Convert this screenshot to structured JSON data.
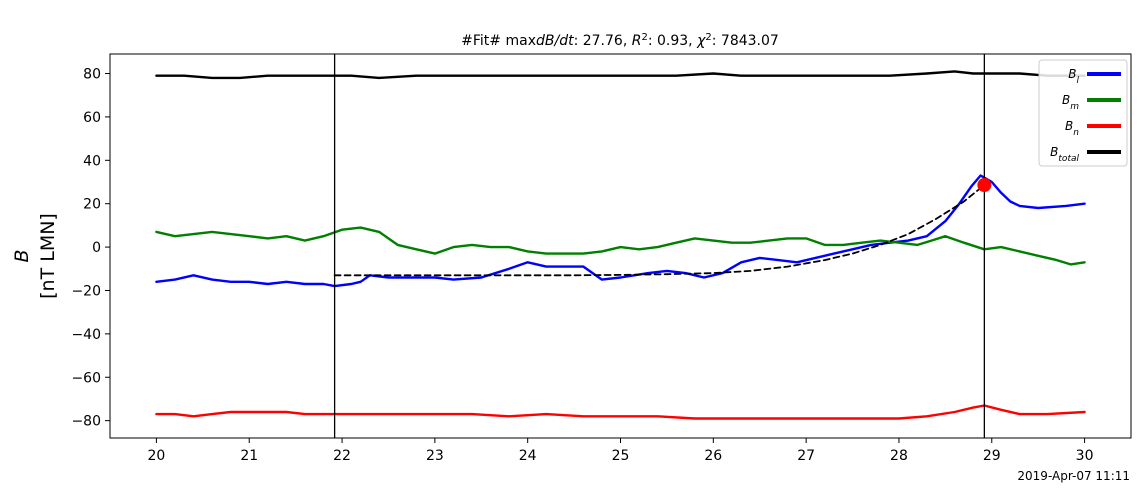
{
  "chart_data": {
    "type": "line",
    "title": "#Fit# max dB/dt: 27.76, R²: 0.93, χ²: 7843.07",
    "title_parts": {
      "prefix": "#Fit# max",
      "var": "dB/dt",
      "r2_label": "R",
      "r2_value": ": 0.93, ",
      "chi_label": "χ",
      "chi_value": ": 7843.07",
      "max_value": ": 27.76, "
    },
    "ylabel": "B",
    "ylabel_units": "[nT LMN]",
    "xlim": [
      19.5,
      30.5
    ],
    "ylim": [
      -88,
      89
    ],
    "xticks": [
      20,
      21,
      22,
      23,
      24,
      25,
      26,
      27,
      28,
      29,
      30
    ],
    "yticks": [
      -80,
      -60,
      -40,
      -20,
      0,
      20,
      40,
      60,
      80
    ],
    "timestamp": "2019-Apr-07 11:11",
    "vertical_lines": [
      21.92,
      28.92
    ],
    "fit_point": {
      "x": 28.92,
      "y": 28.6,
      "color": "#ff0000"
    },
    "legend_position": "top-right",
    "series": [
      {
        "name": "B_l",
        "name_base": "B",
        "name_sub": "l",
        "color": "#0000ff",
        "style": "solid",
        "x": [
          20,
          20.2,
          20.4,
          20.6,
          20.8,
          21.0,
          21.2,
          21.4,
          21.6,
          21.8,
          21.92,
          22.1,
          22.2,
          22.3,
          22.5,
          22.8,
          23.0,
          23.2,
          23.5,
          23.8,
          24.0,
          24.2,
          24.4,
          24.6,
          24.8,
          25.0,
          25.3,
          25.5,
          25.7,
          25.9,
          26.1,
          26.3,
          26.5,
          26.7,
          26.9,
          27.1,
          27.3,
          27.5,
          27.7,
          27.9,
          28.1,
          28.3,
          28.5,
          28.65,
          28.78,
          28.88,
          28.92,
          29.0,
          29.1,
          29.2,
          29.3,
          29.5,
          29.8,
          30.0
        ],
        "y": [
          -16,
          -15,
          -13,
          -15,
          -16,
          -16,
          -17,
          -16,
          -17,
          -17,
          -18,
          -17,
          -16,
          -13,
          -14,
          -14,
          -14,
          -15,
          -14,
          -10,
          -7,
          -9,
          -9,
          -9,
          -15,
          -14,
          -12,
          -11,
          -12,
          -14,
          -12,
          -7,
          -5,
          -6,
          -7,
          -5,
          -3,
          -1,
          1,
          2,
          3,
          5,
          12,
          20,
          28,
          33,
          32,
          30,
          25,
          21,
          19,
          18,
          19,
          20
        ]
      },
      {
        "name": "B_m",
        "name_base": "B",
        "name_sub": "m",
        "color": "#008000",
        "style": "solid",
        "x": [
          20,
          20.2,
          20.4,
          20.6,
          20.8,
          21.0,
          21.2,
          21.4,
          21.6,
          21.8,
          22.0,
          22.2,
          22.4,
          22.6,
          22.8,
          23.0,
          23.2,
          23.4,
          23.6,
          23.8,
          24.0,
          24.2,
          24.4,
          24.6,
          24.8,
          25.0,
          25.2,
          25.4,
          25.6,
          25.8,
          26.0,
          26.2,
          26.4,
          26.6,
          26.8,
          27.0,
          27.2,
          27.4,
          27.6,
          27.8,
          28.0,
          28.2,
          28.35,
          28.5,
          28.7,
          28.92,
          29.1,
          29.3,
          29.5,
          29.7,
          29.85,
          30.0
        ],
        "y": [
          7,
          5,
          6,
          7,
          6,
          5,
          4,
          5,
          3,
          5,
          8,
          9,
          7,
          1,
          -1,
          -3,
          0,
          1,
          0,
          0,
          -2,
          -3,
          -3,
          -3,
          -2,
          0,
          -1,
          0,
          2,
          4,
          3,
          2,
          2,
          3,
          4,
          4,
          1,
          1,
          2,
          3,
          2,
          1,
          3,
          5,
          2,
          -1,
          0,
          -2,
          -4,
          -6,
          -8,
          -7
        ]
      },
      {
        "name": "B_n",
        "name_base": "B",
        "name_sub": "n",
        "color": "#ff0000",
        "style": "solid",
        "x": [
          20,
          20.2,
          20.4,
          20.6,
          20.8,
          21.0,
          21.2,
          21.4,
          21.6,
          21.8,
          22.0,
          22.3,
          22.6,
          23.0,
          23.4,
          23.8,
          24.2,
          24.6,
          25.0,
          25.4,
          25.8,
          26.0,
          26.4,
          26.8,
          27.2,
          27.6,
          28.0,
          28.3,
          28.6,
          28.8,
          28.92,
          29.1,
          29.3,
          29.6,
          30.0
        ],
        "y": [
          -77,
          -77,
          -78,
          -77,
          -76,
          -76,
          -76,
          -76,
          -77,
          -77,
          -77,
          -77,
          -77,
          -77,
          -77,
          -78,
          -77,
          -78,
          -78,
          -78,
          -79,
          -79,
          -79,
          -79,
          -79,
          -79,
          -79,
          -78,
          -76,
          -74,
          -73,
          -75,
          -77,
          -77,
          -76
        ]
      },
      {
        "name": "B_total",
        "name_base": "B",
        "name_sub": "total",
        "color": "#000000",
        "style": "solid",
        "x": [
          20,
          20.3,
          20.6,
          20.9,
          21.2,
          21.5,
          21.8,
          22.1,
          22.4,
          22.8,
          23.2,
          23.6,
          24.0,
          24.4,
          24.8,
          25.2,
          25.6,
          26.0,
          26.3,
          26.7,
          27.1,
          27.5,
          27.9,
          28.3,
          28.6,
          28.8,
          29.0,
          29.3,
          29.6,
          30.0
        ],
        "y": [
          79,
          79,
          78,
          78,
          79,
          79,
          79,
          79,
          78,
          79,
          79,
          79,
          79,
          79,
          79,
          79,
          79,
          80,
          79,
          79,
          79,
          79,
          79,
          80,
          81,
          80,
          80,
          80,
          79,
          79
        ]
      },
      {
        "name": "fit",
        "color": "#000000",
        "style": "dashed",
        "x": [
          21.92,
          22.5,
          23.0,
          23.5,
          24.0,
          24.5,
          25.0,
          25.5,
          26.0,
          26.4,
          26.8,
          27.2,
          27.5,
          27.8,
          28.1,
          28.4,
          28.7,
          28.92
        ],
        "y": [
          -13,
          -13,
          -13,
          -13,
          -13,
          -13,
          -12.8,
          -12.5,
          -12,
          -11,
          -9,
          -6,
          -3,
          1,
          6,
          13,
          21,
          28.6
        ]
      }
    ]
  }
}
